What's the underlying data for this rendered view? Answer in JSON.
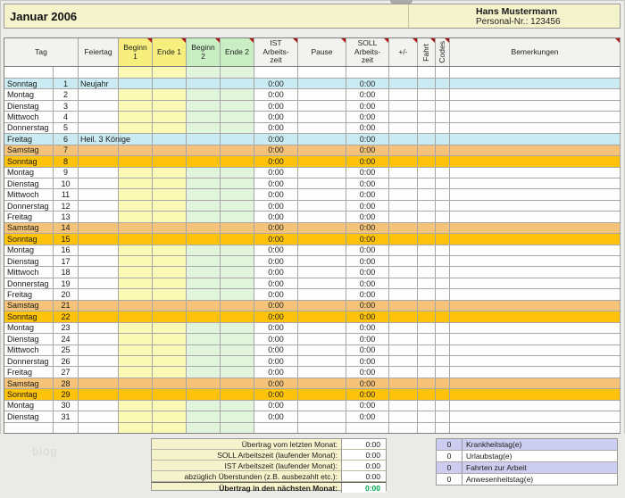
{
  "header": {
    "month_title": "Januar 2006",
    "employee_name": "Hans Mustermann",
    "personal_nr": "Personal-Nr.: 123456"
  },
  "columns": [
    {
      "label": "Tag"
    },
    {
      "label": "Feiertag"
    },
    {
      "label": "Beginn\n1"
    },
    {
      "label": "Ende 1"
    },
    {
      "label": "Beginn\n2"
    },
    {
      "label": "Ende 2"
    },
    {
      "label": "IST\nArbeits-\nzeit"
    },
    {
      "label": "Pause"
    },
    {
      "label": "SOLL\nArbeits-\nzeit"
    },
    {
      "label": "+/-"
    },
    {
      "label": "Fahrt"
    },
    {
      "label": "Codes"
    },
    {
      "label": "Bemerkungen"
    }
  ],
  "rows": [
    {
      "day": "Sonntag",
      "num": "1",
      "feiertag": "Neujahr",
      "type": "holiday",
      "ist": "0:00",
      "soll": "0:00"
    },
    {
      "day": "Montag",
      "num": "2",
      "feiertag": "",
      "type": "weekday",
      "ist": "0:00",
      "soll": "0:00"
    },
    {
      "day": "Dienstag",
      "num": "3",
      "feiertag": "",
      "type": "weekday",
      "ist": "0:00",
      "soll": "0:00"
    },
    {
      "day": "Mittwoch",
      "num": "4",
      "feiertag": "",
      "type": "weekday",
      "ist": "0:00",
      "soll": "0:00"
    },
    {
      "day": "Donnerstag",
      "num": "5",
      "feiertag": "",
      "type": "weekday",
      "ist": "0:00",
      "soll": "0:00"
    },
    {
      "day": "Freitag",
      "num": "6",
      "feiertag": "Heil. 3 Könige",
      "type": "holiday",
      "ist": "0:00",
      "soll": "0:00"
    },
    {
      "day": "Samstag",
      "num": "7",
      "feiertag": "",
      "type": "saturday",
      "ist": "0:00",
      "soll": "0:00"
    },
    {
      "day": "Sonntag",
      "num": "8",
      "feiertag": "",
      "type": "sunday",
      "ist": "0:00",
      "soll": "0:00"
    },
    {
      "day": "Montag",
      "num": "9",
      "feiertag": "",
      "type": "weekday",
      "ist": "0:00",
      "soll": "0:00"
    },
    {
      "day": "Dienstag",
      "num": "10",
      "feiertag": "",
      "type": "weekday",
      "ist": "0:00",
      "soll": "0:00"
    },
    {
      "day": "Mittwoch",
      "num": "11",
      "feiertag": "",
      "type": "weekday",
      "ist": "0:00",
      "soll": "0:00"
    },
    {
      "day": "Donnerstag",
      "num": "12",
      "feiertag": "",
      "type": "weekday",
      "ist": "0:00",
      "soll": "0:00"
    },
    {
      "day": "Freitag",
      "num": "13",
      "feiertag": "",
      "type": "weekday",
      "ist": "0:00",
      "soll": "0:00"
    },
    {
      "day": "Samstag",
      "num": "14",
      "feiertag": "",
      "type": "saturday",
      "ist": "0:00",
      "soll": "0:00"
    },
    {
      "day": "Sonntag",
      "num": "15",
      "feiertag": "",
      "type": "sunday",
      "ist": "0:00",
      "soll": "0:00"
    },
    {
      "day": "Montag",
      "num": "16",
      "feiertag": "",
      "type": "weekday",
      "ist": "0:00",
      "soll": "0:00"
    },
    {
      "day": "Dienstag",
      "num": "17",
      "feiertag": "",
      "type": "weekday",
      "ist": "0:00",
      "soll": "0:00"
    },
    {
      "day": "Mittwoch",
      "num": "18",
      "feiertag": "",
      "type": "weekday",
      "ist": "0:00",
      "soll": "0:00"
    },
    {
      "day": "Donnerstag",
      "num": "19",
      "feiertag": "",
      "type": "weekday",
      "ist": "0:00",
      "soll": "0:00"
    },
    {
      "day": "Freitag",
      "num": "20",
      "feiertag": "",
      "type": "weekday",
      "ist": "0:00",
      "soll": "0:00"
    },
    {
      "day": "Samstag",
      "num": "21",
      "feiertag": "",
      "type": "saturday",
      "ist": "0:00",
      "soll": "0:00"
    },
    {
      "day": "Sonntag",
      "num": "22",
      "feiertag": "",
      "type": "sunday",
      "ist": "0:00",
      "soll": "0:00"
    },
    {
      "day": "Montag",
      "num": "23",
      "feiertag": "",
      "type": "weekday",
      "ist": "0:00",
      "soll": "0:00"
    },
    {
      "day": "Dienstag",
      "num": "24",
      "feiertag": "",
      "type": "weekday",
      "ist": "0:00",
      "soll": "0:00"
    },
    {
      "day": "Mittwoch",
      "num": "25",
      "feiertag": "",
      "type": "weekday",
      "ist": "0:00",
      "soll": "0:00"
    },
    {
      "day": "Donnerstag",
      "num": "26",
      "feiertag": "",
      "type": "weekday",
      "ist": "0:00",
      "soll": "0:00"
    },
    {
      "day": "Freitag",
      "num": "27",
      "feiertag": "",
      "type": "weekday",
      "ist": "0:00",
      "soll": "0:00"
    },
    {
      "day": "Samstag",
      "num": "28",
      "feiertag": "",
      "type": "saturday",
      "ist": "0:00",
      "soll": "0:00"
    },
    {
      "day": "Sonntag",
      "num": "29",
      "feiertag": "",
      "type": "sunday",
      "ist": "0:00",
      "soll": "0:00"
    },
    {
      "day": "Montag",
      "num": "30",
      "feiertag": "",
      "type": "weekday",
      "ist": "0:00",
      "soll": "0:00"
    },
    {
      "day": "Dienstag",
      "num": "31",
      "feiertag": "",
      "type": "weekday",
      "ist": "0:00",
      "soll": "0:00"
    },
    {
      "day": "",
      "num": "",
      "feiertag": "",
      "type": "weekday",
      "ist": "",
      "soll": ""
    }
  ],
  "summary_left": [
    {
      "label": "Übertrag vom letzten Monat:",
      "value": "0:00",
      "total": false
    },
    {
      "label": "SOLL Arbeitszeit (laufender Monat):",
      "value": "0:00",
      "total": false
    },
    {
      "label": "IST Arbeitszeit (laufender Monat):",
      "value": "0:00",
      "total": false
    },
    {
      "label": "abzüglich Überstunden (z.B. ausbezahlt etc.):",
      "value": "0:00",
      "total": false
    },
    {
      "label": "Übertrag in den nächsten Monat:",
      "value": "0:00",
      "total": true
    }
  ],
  "summary_right": [
    {
      "value": "0",
      "label": "Krankheitstag(e)",
      "highlight": true
    },
    {
      "value": "0",
      "label": "Urlaubstag(e)",
      "highlight": false
    },
    {
      "value": "0",
      "label": "Fahrten zur Arbeit",
      "highlight": true
    },
    {
      "value": "0",
      "label": "Anwesenheitstag(e)",
      "highlight": false
    }
  ],
  "watermark": "blog",
  "colors": {
    "band_yellow": "#F5F3CC",
    "header_yellow": "#F6EE7D",
    "header_green": "#C9EEC4",
    "cell_yellow": "#FBFAB4",
    "cell_green": "#E1F5DD",
    "saturday": "#F4C379",
    "sunday": "#FFC30B",
    "holiday": "#CBEBF2",
    "lavender": "#CDCDF0",
    "total_green": "#00A651",
    "comment_marker_red": "#B01818"
  }
}
